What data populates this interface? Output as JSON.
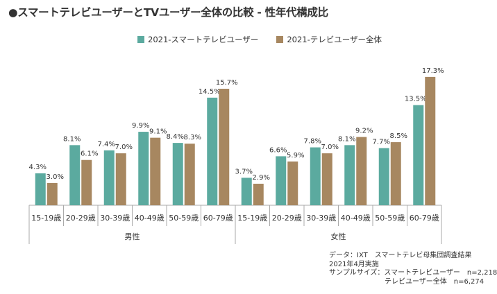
{
  "title": "●スマートテレビユーザーとTVユーザー全体の比較 - 性年代構成比",
  "colors": {
    "series1": "#5BAA9F",
    "series2": "#A78760",
    "axis": "#AAAAAA",
    "text": "#333333"
  },
  "chart_data": {
    "type": "bar",
    "title": "●スマートテレビユーザーとTVユーザー全体の比較 - 性年代構成比",
    "ylim": [
      0,
      18
    ],
    "grid": false,
    "legend_position": "top-center",
    "groups": [
      {
        "label": "男性",
        "categories": [
          "15-19歳",
          "20-29歳",
          "30-39歳",
          "40-49歳",
          "50-59歳",
          "60-79歳"
        ]
      },
      {
        "label": "女性",
        "categories": [
          "15-19歳",
          "20-29歳",
          "30-39歳",
          "40-49歳",
          "50-59歳",
          "60-79歳"
        ]
      }
    ],
    "series": [
      {
        "name": "2021-スマートテレビユーザー",
        "color": "#5BAA9F",
        "values": [
          4.3,
          8.1,
          7.4,
          9.9,
          8.4,
          14.5,
          3.7,
          6.6,
          7.8,
          8.1,
          7.7,
          13.5
        ],
        "labels": [
          "4.3%",
          "8.1%",
          "7.4%",
          "9.9%",
          "8.4%",
          "14.5%",
          "3.7%",
          "6.6%",
          "7.8%",
          "8.1%",
          "7.7%",
          "13.5%"
        ]
      },
      {
        "name": "2021-テレビユーザー全体",
        "color": "#A78760",
        "values": [
          3.0,
          6.1,
          7.0,
          9.1,
          8.3,
          15.7,
          2.9,
          5.9,
          7.0,
          9.2,
          8.5,
          17.3
        ],
        "labels": [
          "3.0%",
          "6.1%",
          "7.0%",
          "9.1%",
          "8.3%",
          "15.7%",
          "2.9%",
          "5.9%",
          "7.0%",
          "9.2%",
          "8.5%",
          "17.3%"
        ]
      }
    ]
  },
  "notes": {
    "line1": "データ：IXT　スマートテレビ母集団調査結果",
    "line2": "2021年4月実施",
    "line3": "サンプルサイズ：スマートテレビユーザー　n=2,218",
    "line4": "　　　　　　　　テレビユーザー全体　n=6,274"
  }
}
